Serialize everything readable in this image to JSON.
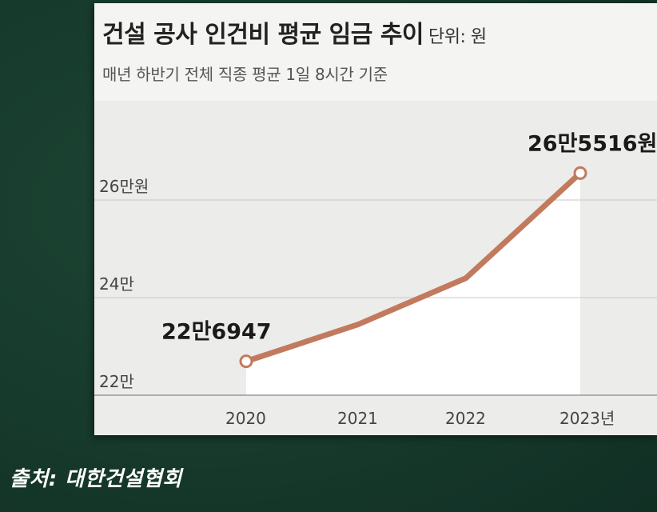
{
  "chart_data": {
    "type": "line",
    "title": "건설 공사 인건비 평균 임금 추이",
    "unit_label": "단위: 원",
    "subtitle": "매년 하반기 전체 직종 평균 1일 8시간 기준",
    "x": [
      "2020",
      "2021",
      "2022",
      "2023"
    ],
    "x_tick_labels": [
      "2020",
      "2021",
      "2022",
      "2023년"
    ],
    "series": [
      {
        "values": [
          226947,
          234500,
          244000,
          265516
        ],
        "color": "#c27a5e"
      }
    ],
    "ylim": [
      220000,
      270000
    ],
    "y_ticks": [
      220000,
      240000,
      260000
    ],
    "y_tick_labels": [
      "22만",
      "24만",
      "26만원"
    ],
    "data_labels": [
      {
        "index": 0,
        "text": "22만6947"
      },
      {
        "index": 3,
        "text": "26만5516원"
      }
    ],
    "grid": true,
    "colors": {
      "line": "#c27a5e",
      "grid": "#c9c9c9",
      "background": "#163a2c"
    }
  },
  "source": "출처: 대한건설협회"
}
